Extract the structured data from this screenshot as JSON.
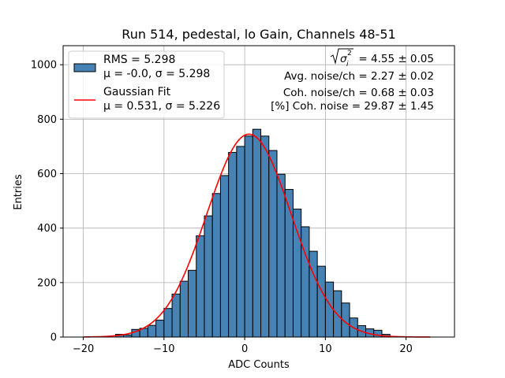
{
  "chart_data": {
    "type": "bar",
    "title": "Run 514, pedestal, lo Gain, Channels 48-51",
    "xlabel": "ADC Counts",
    "ylabel": "Entries",
    "xlim": [
      -22.5,
      26
    ],
    "ylim": [
      0,
      1070
    ],
    "xticks": [
      -20,
      -10,
      0,
      10,
      20
    ],
    "yticks": [
      0,
      200,
      400,
      600,
      800,
      1000
    ],
    "grid": true,
    "bin_width": 1,
    "bins": [
      -16,
      -15,
      -14,
      -13,
      -12,
      -11,
      -10,
      -9,
      -8,
      -7,
      -6,
      -5,
      -4,
      -3,
      -2,
      -1,
      0,
      1,
      2,
      3,
      4,
      5,
      6,
      7,
      8,
      9,
      10,
      11,
      12,
      13,
      14,
      15,
      16,
      17
    ],
    "values": [
      10,
      8,
      28,
      32,
      43,
      62,
      105,
      158,
      205,
      245,
      372,
      445,
      527,
      593,
      678,
      700,
      738,
      763,
      738,
      685,
      598,
      542,
      470,
      405,
      315,
      260,
      202,
      170,
      125,
      70,
      42,
      30,
      25,
      10
    ],
    "bar_color": "#4682b4",
    "fit": {
      "mu": 0.531,
      "sigma": 5.226,
      "amplitude": 745,
      "color": "#ff0000",
      "xrange": [
        -20,
        23
      ]
    },
    "legend": {
      "position": "top-left",
      "entries": [
        {
          "line1": "RMS = 5.298",
          "line2": "μ = -0.0, σ = 5.298"
        },
        {
          "line1": "Gaussian Fit",
          "line2": "μ = 0.531, σ = 5.226"
        }
      ]
    },
    "annotations": [
      "= 4.55 ± 0.05",
      "Avg. noise/ch = 2.27 ± 0.02",
      "Coh. noise/ch = 0.68 ± 0.03",
      "[%] Coh. noise = 29.87 ± 1.45"
    ]
  }
}
